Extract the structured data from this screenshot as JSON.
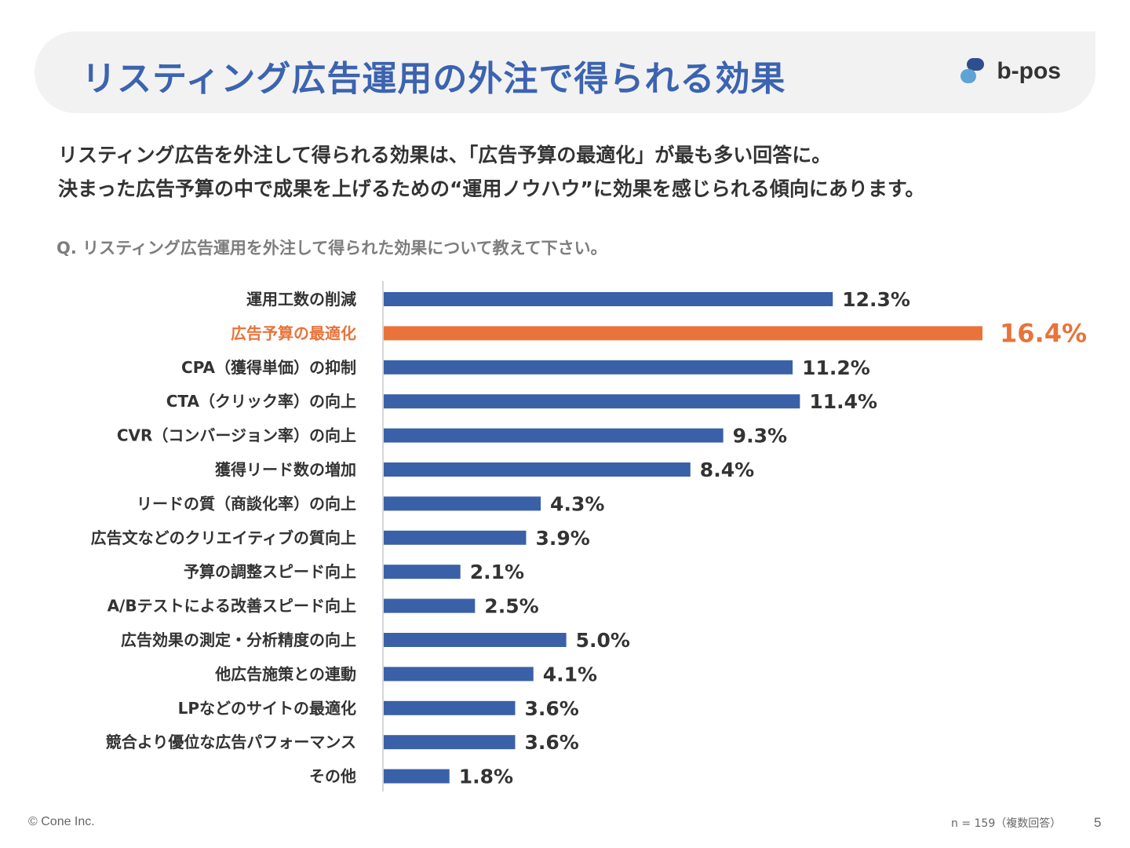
{
  "header": {
    "title": "リスティング広告運用の外注で得られる効果",
    "logo_text": "b-pos"
  },
  "lead": {
    "line1": "リスティング広告を外注して得られる効果は、「広告予算の最適化」が最も多い回答に。",
    "line2": "決まった広告予算の中で成果を上げるための“運用ノウハウ”に効果を感じられる傾向にあります。"
  },
  "question": "Q. リスティング広告運用を外注して得られた効果について教えて下さい。",
  "colors": {
    "bar": "#3a60a8",
    "highlight": "#e9733a",
    "axis": "#c8c8c8",
    "label": "#333333"
  },
  "chart_data": {
    "type": "bar",
    "orientation": "horizontal",
    "highlight_index": 1,
    "xlim": [
      0,
      16.4
    ],
    "categories": [
      "運用工数の削減",
      "広告予算の最適化",
      "CPA（獲得単価）の抑制",
      "CTA（クリック率）の向上",
      "CVR（コンバージョン率）の向上",
      "獲得リード数の増加",
      "リードの質（商談化率）の向上",
      "広告文などのクリエイティブの質向上",
      "予算の調整スピード向上",
      "A/Bテストによる改善スピード向上",
      "広告効果の測定・分析精度の向上",
      "他広告施策との連動",
      "LPなどのサイトの最適化",
      "競合より優位な広告パフォーマンス",
      "その他"
    ],
    "values": [
      12.3,
      16.4,
      11.2,
      11.4,
      9.3,
      8.4,
      4.3,
      3.9,
      2.1,
      2.5,
      5.0,
      4.1,
      3.6,
      3.6,
      1.8
    ],
    "value_labels": [
      "12.3%",
      "16.4%",
      "11.2%",
      "11.4%",
      "9.3%",
      "8.4%",
      "4.3%",
      "3.9%",
      "2.1%",
      "2.5%",
      "5.0%",
      "4.1%",
      "3.6%",
      "3.6%",
      "1.8%"
    ]
  },
  "footer": {
    "copyright": "© Cone Inc.",
    "note": "n = 159（複数回答）",
    "page": "5"
  }
}
